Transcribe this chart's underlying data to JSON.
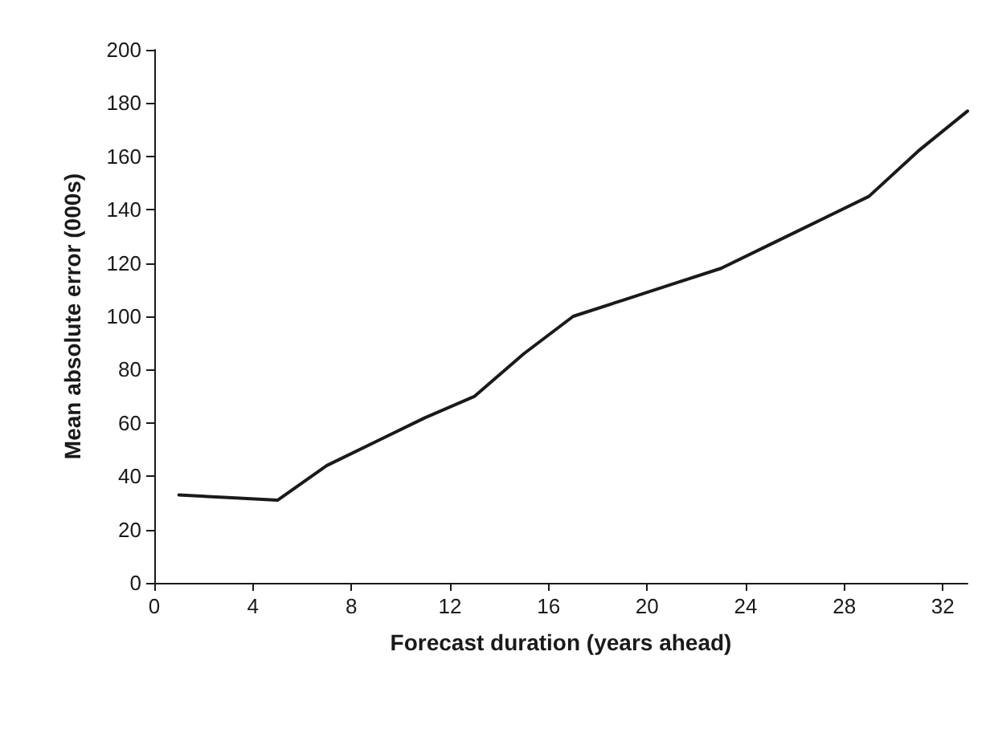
{
  "chart_data": {
    "type": "line",
    "xlabel": "Forecast duration (years ahead)",
    "ylabel": "Mean absolute error (000s)",
    "x": [
      1,
      3,
      5,
      7,
      9,
      11,
      13,
      15,
      17,
      19,
      21,
      23,
      25,
      27,
      29,
      31,
      33
    ],
    "series": [
      {
        "color": "#1a1a1a",
        "values": [
          33,
          32,
          31,
          44,
          53,
          62,
          70,
          86,
          100,
          106,
          112,
          118,
          127,
          136,
          145,
          162,
          177
        ]
      }
    ],
    "xlim": [
      0,
      33
    ],
    "xticks": [
      0,
      4,
      8,
      12,
      16,
      20,
      24,
      28,
      32
    ],
    "ylim": [
      0,
      200
    ],
    "yticks": [
      0,
      20,
      40,
      60,
      80,
      100,
      120,
      140,
      160,
      180,
      200
    ],
    "grid": false,
    "marker": "none",
    "line_style": "solid"
  }
}
